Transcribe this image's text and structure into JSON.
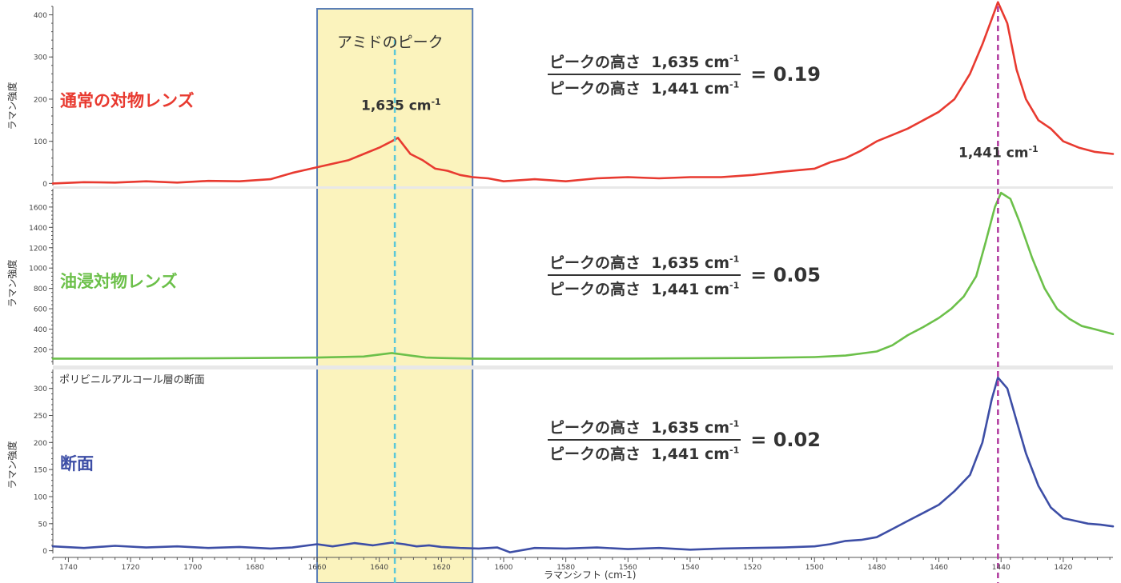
{
  "chart_data": {
    "type": "line",
    "title": "",
    "xlabel": "ラマンシフト (cm-1)",
    "x_range": [
      1745,
      1404
    ],
    "x_ticks": [
      1740,
      1720,
      1700,
      1680,
      1660,
      1640,
      1620,
      1600,
      1580,
      1560,
      1540,
      1520,
      1500,
      1480,
      1460,
      1440,
      1420
    ],
    "highlight_band": {
      "x_from": 1660,
      "x_to": 1610,
      "label": "アミドのピーク",
      "fill": "#fbf3bd",
      "border": "#5b7fb7"
    },
    "peaks": [
      {
        "x": 1635,
        "label": "1,635 cm",
        "exponent": "-1",
        "color": "#5bc8d8"
      },
      {
        "x": 1441,
        "label": "1,441 cm",
        "exponent": "-1",
        "color": "#b0389e"
      }
    ],
    "panels": [
      {
        "label": "通常の対物レンズ",
        "ylabel": "ラマン強度",
        "color": "#e83a30",
        "ylim": [
          -5,
          420
        ],
        "y_ticks": [
          0,
          100,
          200,
          300,
          400
        ],
        "ratio": "0.19",
        "x": [
          1745,
          1735,
          1725,
          1715,
          1705,
          1695,
          1685,
          1675,
          1668,
          1662,
          1656,
          1650,
          1645,
          1640,
          1636,
          1634,
          1630,
          1626,
          1622,
          1618,
          1614,
          1610,
          1605,
          1600,
          1590,
          1580,
          1570,
          1560,
          1550,
          1540,
          1530,
          1520,
          1510,
          1500,
          1495,
          1490,
          1485,
          1480,
          1475,
          1470,
          1465,
          1460,
          1455,
          1450,
          1446,
          1443,
          1441,
          1438,
          1435,
          1432,
          1428,
          1424,
          1420,
          1415,
          1410,
          1404
        ],
        "values": [
          0,
          3,
          2,
          5,
          2,
          6,
          5,
          10,
          25,
          35,
          45,
          55,
          70,
          85,
          100,
          108,
          70,
          55,
          35,
          30,
          20,
          15,
          12,
          5,
          10,
          5,
          12,
          15,
          12,
          15,
          15,
          20,
          28,
          35,
          50,
          60,
          78,
          100,
          115,
          130,
          150,
          170,
          200,
          260,
          330,
          390,
          430,
          380,
          270,
          200,
          150,
          130,
          100,
          85,
          75,
          70
        ]
      },
      {
        "label": "油浸対物レンズ",
        "ylabel": "ラマン強度",
        "color": "#6cc04a",
        "ylim": [
          50,
          1780
        ],
        "y_ticks": [
          200,
          400,
          600,
          800,
          1000,
          1200,
          1400,
          1600
        ],
        "ratio": "0.05",
        "x": [
          1745,
          1720,
          1700,
          1680,
          1660,
          1645,
          1636,
          1630,
          1625,
          1620,
          1610,
          1600,
          1580,
          1560,
          1540,
          1520,
          1500,
          1490,
          1480,
          1475,
          1470,
          1465,
          1460,
          1456,
          1452,
          1448,
          1445,
          1442,
          1440,
          1437,
          1434,
          1430,
          1426,
          1422,
          1418,
          1414,
          1410,
          1404
        ],
        "values": [
          110,
          110,
          112,
          115,
          120,
          130,
          165,
          140,
          120,
          115,
          110,
          108,
          110,
          110,
          112,
          115,
          125,
          140,
          180,
          240,
          340,
          420,
          510,
          600,
          720,
          920,
          1250,
          1600,
          1740,
          1680,
          1450,
          1100,
          800,
          600,
          500,
          430,
          400,
          350
        ]
      },
      {
        "label": "断面",
        "sublabel": "ポリビニルアルコール層の断面",
        "ylabel": "ラマン強度",
        "color": "#3d4ea6",
        "ylim": [
          -5,
          335
        ],
        "y_ticks": [
          0,
          50,
          100,
          150,
          200,
          250,
          300
        ],
        "ratio": "0.02",
        "x": [
          1745,
          1735,
          1725,
          1715,
          1705,
          1695,
          1685,
          1675,
          1668,
          1660,
          1655,
          1648,
          1642,
          1636,
          1632,
          1628,
          1624,
          1620,
          1614,
          1608,
          1602,
          1598,
          1590,
          1580,
          1570,
          1560,
          1550,
          1540,
          1530,
          1520,
          1510,
          1500,
          1495,
          1490,
          1485,
          1480,
          1475,
          1470,
          1465,
          1460,
          1455,
          1450,
          1446,
          1443,
          1441,
          1438,
          1435,
          1432,
          1428,
          1424,
          1420,
          1416,
          1412,
          1408,
          1404
        ],
        "values": [
          8,
          5,
          9,
          6,
          8,
          5,
          7,
          4,
          6,
          12,
          8,
          14,
          10,
          15,
          12,
          8,
          10,
          7,
          5,
          4,
          6,
          -3,
          5,
          4,
          6,
          3,
          5,
          2,
          4,
          5,
          6,
          8,
          12,
          18,
          20,
          25,
          40,
          55,
          70,
          85,
          110,
          140,
          200,
          280,
          320,
          300,
          240,
          180,
          120,
          80,
          60,
          55,
          50,
          48,
          45
        ]
      }
    ],
    "formula": {
      "numerator": "ピークの高さ",
      "denominator": "ピークの高さ",
      "num_value": "1,635 cm",
      "den_value": "1,441 cm",
      "exponent": "-1"
    }
  }
}
